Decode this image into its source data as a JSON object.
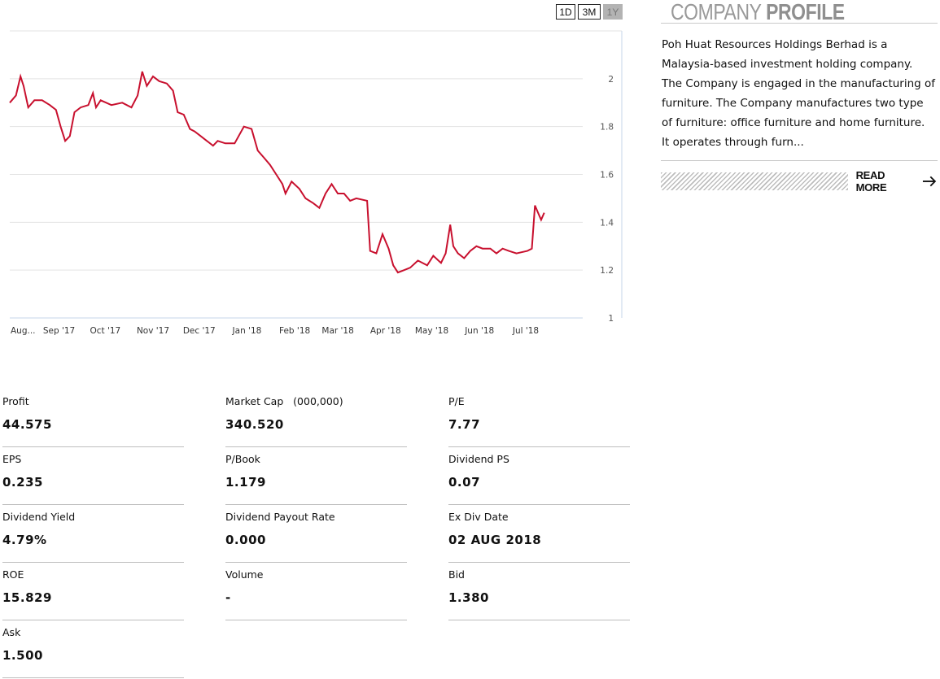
{
  "range_buttons": [
    {
      "label": "1D",
      "active": false
    },
    {
      "label": "3M",
      "active": false
    },
    {
      "label": "1Y",
      "active": true
    }
  ],
  "chart_data": {
    "type": "line",
    "line_color": "#c8102e",
    "ylim": [
      1,
      2.2
    ],
    "y_ticks": [
      "2",
      "1.8",
      "1.6",
      "1.4",
      "1.2",
      "1"
    ],
    "y_tick_values": [
      2,
      1.8,
      1.6,
      1.4,
      1.2,
      1
    ],
    "x_tick_labels": [
      "Aug...",
      "Sep '17",
      "Oct '17",
      "Nov '17",
      "Dec '17",
      "Jan '18",
      "Feb '18",
      "Mar '18",
      "Apr '18",
      "May '18",
      "Jun '18",
      "Jul '18"
    ],
    "x_tick_dates": [
      "2017-08-01",
      "2017-09-01",
      "2017-10-01",
      "2017-11-01",
      "2017-12-01",
      "2018-01-01",
      "2018-02-01",
      "2018-03-01",
      "2018-04-01",
      "2018-05-01",
      "2018-06-01",
      "2018-07-01"
    ],
    "x_range": [
      "2017-07-31",
      "2018-08-07"
    ],
    "grid": true,
    "series": [
      {
        "points": [
          [
            "2017-07-31",
            1.9
          ],
          [
            "2017-08-04",
            1.93
          ],
          [
            "2017-08-07",
            2.01
          ],
          [
            "2017-08-09",
            1.97
          ],
          [
            "2017-08-12",
            1.88
          ],
          [
            "2017-08-16",
            1.91
          ],
          [
            "2017-08-21",
            1.91
          ],
          [
            "2017-08-26",
            1.89
          ],
          [
            "2017-08-30",
            1.87
          ],
          [
            "2017-09-02",
            1.8
          ],
          [
            "2017-09-05",
            1.74
          ],
          [
            "2017-09-08",
            1.76
          ],
          [
            "2017-09-11",
            1.86
          ],
          [
            "2017-09-15",
            1.88
          ],
          [
            "2017-09-20",
            1.89
          ],
          [
            "2017-09-23",
            1.94
          ],
          [
            "2017-09-25",
            1.88
          ],
          [
            "2017-09-28",
            1.91
          ],
          [
            "2017-10-05",
            1.89
          ],
          [
            "2017-10-12",
            1.9
          ],
          [
            "2017-10-18",
            1.88
          ],
          [
            "2017-10-22",
            1.93
          ],
          [
            "2017-10-25",
            2.03
          ],
          [
            "2017-10-28",
            1.97
          ],
          [
            "2017-11-01",
            2.01
          ],
          [
            "2017-11-05",
            1.99
          ],
          [
            "2017-11-10",
            1.98
          ],
          [
            "2017-11-14",
            1.95
          ],
          [
            "2017-11-17",
            1.86
          ],
          [
            "2017-11-21",
            1.85
          ],
          [
            "2017-11-25",
            1.79
          ],
          [
            "2017-11-28",
            1.78
          ],
          [
            "2017-12-02",
            1.76
          ],
          [
            "2017-12-06",
            1.74
          ],
          [
            "2017-12-10",
            1.72
          ],
          [
            "2017-12-13",
            1.74
          ],
          [
            "2017-12-18",
            1.73
          ],
          [
            "2017-12-24",
            1.73
          ],
          [
            "2017-12-30",
            1.8
          ],
          [
            "2018-01-04",
            1.79
          ],
          [
            "2018-01-08",
            1.7
          ],
          [
            "2018-01-12",
            1.67
          ],
          [
            "2018-01-16",
            1.64
          ],
          [
            "2018-01-20",
            1.6
          ],
          [
            "2018-01-24",
            1.56
          ],
          [
            "2018-01-26",
            1.52
          ],
          [
            "2018-01-30",
            1.57
          ],
          [
            "2018-02-04",
            1.54
          ],
          [
            "2018-02-08",
            1.5
          ],
          [
            "2018-02-13",
            1.48
          ],
          [
            "2018-02-17",
            1.46
          ],
          [
            "2018-02-21",
            1.52
          ],
          [
            "2018-02-25",
            1.56
          ],
          [
            "2018-03-01",
            1.52
          ],
          [
            "2018-03-05",
            1.52
          ],
          [
            "2018-03-09",
            1.49
          ],
          [
            "2018-03-13",
            1.5
          ],
          [
            "2018-03-20",
            1.49
          ],
          [
            "2018-03-22",
            1.28
          ],
          [
            "2018-03-26",
            1.27
          ],
          [
            "2018-03-30",
            1.35
          ],
          [
            "2018-04-03",
            1.29
          ],
          [
            "2018-04-06",
            1.22
          ],
          [
            "2018-04-09",
            1.19
          ],
          [
            "2018-04-13",
            1.2
          ],
          [
            "2018-04-17",
            1.21
          ],
          [
            "2018-04-22",
            1.24
          ],
          [
            "2018-04-28",
            1.22
          ],
          [
            "2018-05-02",
            1.26
          ],
          [
            "2018-05-07",
            1.23
          ],
          [
            "2018-05-10",
            1.27
          ],
          [
            "2018-05-13",
            1.39
          ],
          [
            "2018-05-15",
            1.3
          ],
          [
            "2018-05-18",
            1.27
          ],
          [
            "2018-05-22",
            1.25
          ],
          [
            "2018-05-26",
            1.28
          ],
          [
            "2018-05-30",
            1.3
          ],
          [
            "2018-06-03",
            1.29
          ],
          [
            "2018-06-08",
            1.29
          ],
          [
            "2018-06-12",
            1.27
          ],
          [
            "2018-06-16",
            1.29
          ],
          [
            "2018-06-20",
            1.28
          ],
          [
            "2018-06-25",
            1.27
          ],
          [
            "2018-07-02",
            1.28
          ],
          [
            "2018-07-05",
            1.29
          ],
          [
            "2018-07-07",
            1.47
          ],
          [
            "2018-07-09",
            1.44
          ],
          [
            "2018-07-11",
            1.41
          ],
          [
            "2018-07-13",
            1.44
          ]
        ]
      }
    ]
  },
  "profile": {
    "title_light": "COMPANY",
    "title_bold": "PROFILE",
    "lines": [
      "Poh Huat Resources Holdings Berhad is a",
      "Malaysia-based investment holding company.",
      "The Company is engaged in the manufacturing of",
      "furniture. The Company manufactures two type",
      "of furniture: office furniture and home furniture.",
      "It operates through furn..."
    ],
    "read_more": "READ MORE"
  },
  "stats": [
    {
      "label": "Profit",
      "value": "44.575"
    },
    {
      "label": "Market Cap   (000,000)",
      "value": "340.520"
    },
    {
      "label": "P/E",
      "value": "7.77"
    },
    {
      "label": "EPS",
      "value": "0.235"
    },
    {
      "label": "P/Book",
      "value": "1.179"
    },
    {
      "label": "Dividend PS",
      "value": "0.07"
    },
    {
      "label": "Dividend Yield",
      "value": "4.79%"
    },
    {
      "label": "Dividend Payout Rate",
      "value": "0.000"
    },
    {
      "label": "Ex Div Date",
      "value": "02 AUG 2018"
    },
    {
      "label": "ROE",
      "value": "15.829"
    },
    {
      "label": "Volume",
      "value": "-"
    },
    {
      "label": "Bid",
      "value": "1.380"
    },
    {
      "label": "Ask",
      "value": "1.500"
    }
  ]
}
